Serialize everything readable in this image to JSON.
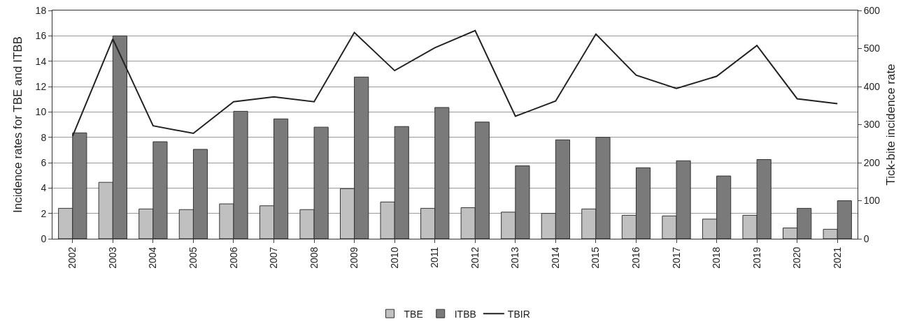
{
  "chart_data": {
    "type": "bar",
    "ylabel": "Incidence rates for TBE and ITBB",
    "y2label": "Tick-bite incidence rate",
    "categories": [
      "2002",
      "2003",
      "2004",
      "2005",
      "2006",
      "2007",
      "2008",
      "2009",
      "2010",
      "2011",
      "2012",
      "2013",
      "2014",
      "2015",
      "2016",
      "2017",
      "2018",
      "2019",
      "2020",
      "2021"
    ],
    "series": [
      {
        "name": "TBE",
        "color": "#c0c0c0",
        "values": [
          2.4,
          4.45,
          2.35,
          2.3,
          2.75,
          2.6,
          2.3,
          3.95,
          2.9,
          2.4,
          2.45,
          2.1,
          2.0,
          2.35,
          1.85,
          1.8,
          1.55,
          1.85,
          0.85,
          0.75
        ]
      },
      {
        "name": "ITBB",
        "color": "#7a7a7a",
        "values": [
          8.35,
          16.0,
          7.65,
          7.05,
          10.05,
          9.45,
          8.8,
          12.75,
          8.85,
          10.35,
          9.2,
          5.75,
          7.8,
          8.0,
          5.6,
          6.15,
          4.95,
          6.25,
          2.4,
          3.0
        ]
      },
      {
        "name": "TBIR",
        "type": "line",
        "axis": "y2",
        "color": "#222222",
        "values": [
          270,
          525,
          297,
          277,
          360,
          373,
          360,
          542,
          442,
          502,
          547,
          322,
          362,
          538,
          430,
          395,
          427,
          508,
          368,
          355
        ]
      }
    ],
    "ylim": [
      0,
      18
    ],
    "yticks": [
      0,
      2,
      4,
      6,
      8,
      10,
      12,
      14,
      16,
      18
    ],
    "y2lim": [
      0,
      600
    ],
    "y2ticks": [
      0,
      100,
      200,
      300,
      400,
      500,
      600
    ],
    "grid": "y",
    "legend": "bottom",
    "marker": "none",
    "line_style": "solid"
  }
}
